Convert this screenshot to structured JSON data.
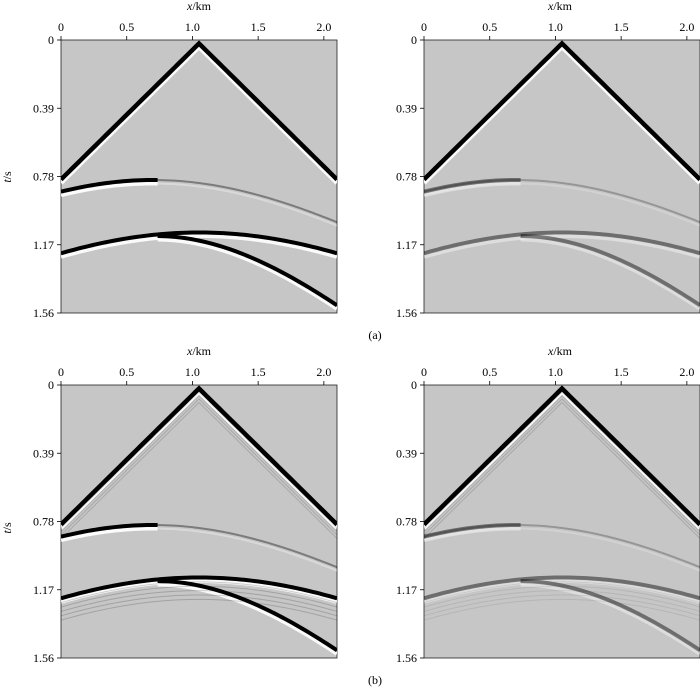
{
  "figure": {
    "x_axis_label_var": "x",
    "x_axis_label_unit": "/km",
    "y_axis_label_var": "t",
    "y_axis_label_unit": "/s",
    "x_ticks": [
      "0",
      "0.5",
      "1.0",
      "1.5",
      "2.0"
    ],
    "y_ticks": [
      "0",
      "0.39",
      "0.78",
      "1.17",
      "1.56"
    ],
    "captions": [
      "(a)",
      "(b)"
    ]
  },
  "axes": {
    "x_range_km": [
      0,
      2.1
    ],
    "y_range_s": [
      0,
      1.56
    ],
    "x_tick_values": [
      0,
      0.5,
      1.0,
      1.5,
      2.0
    ],
    "y_tick_values": [
      0,
      0.39,
      0.78,
      1.17,
      1.56
    ]
  },
  "colors": {
    "background": "#c6c6c6",
    "event_dark": "#000000",
    "event_light": "#ffffff"
  },
  "panels": [
    {
      "row": "a",
      "col": "left",
      "strength": 1.0,
      "ringing": false
    },
    {
      "row": "a",
      "col": "right",
      "strength": 0.45,
      "ringing": false
    },
    {
      "row": "b",
      "col": "left",
      "strength": 1.0,
      "ringing": true
    },
    {
      "row": "b",
      "col": "right",
      "strength": 0.45,
      "ringing": true
    }
  ]
}
